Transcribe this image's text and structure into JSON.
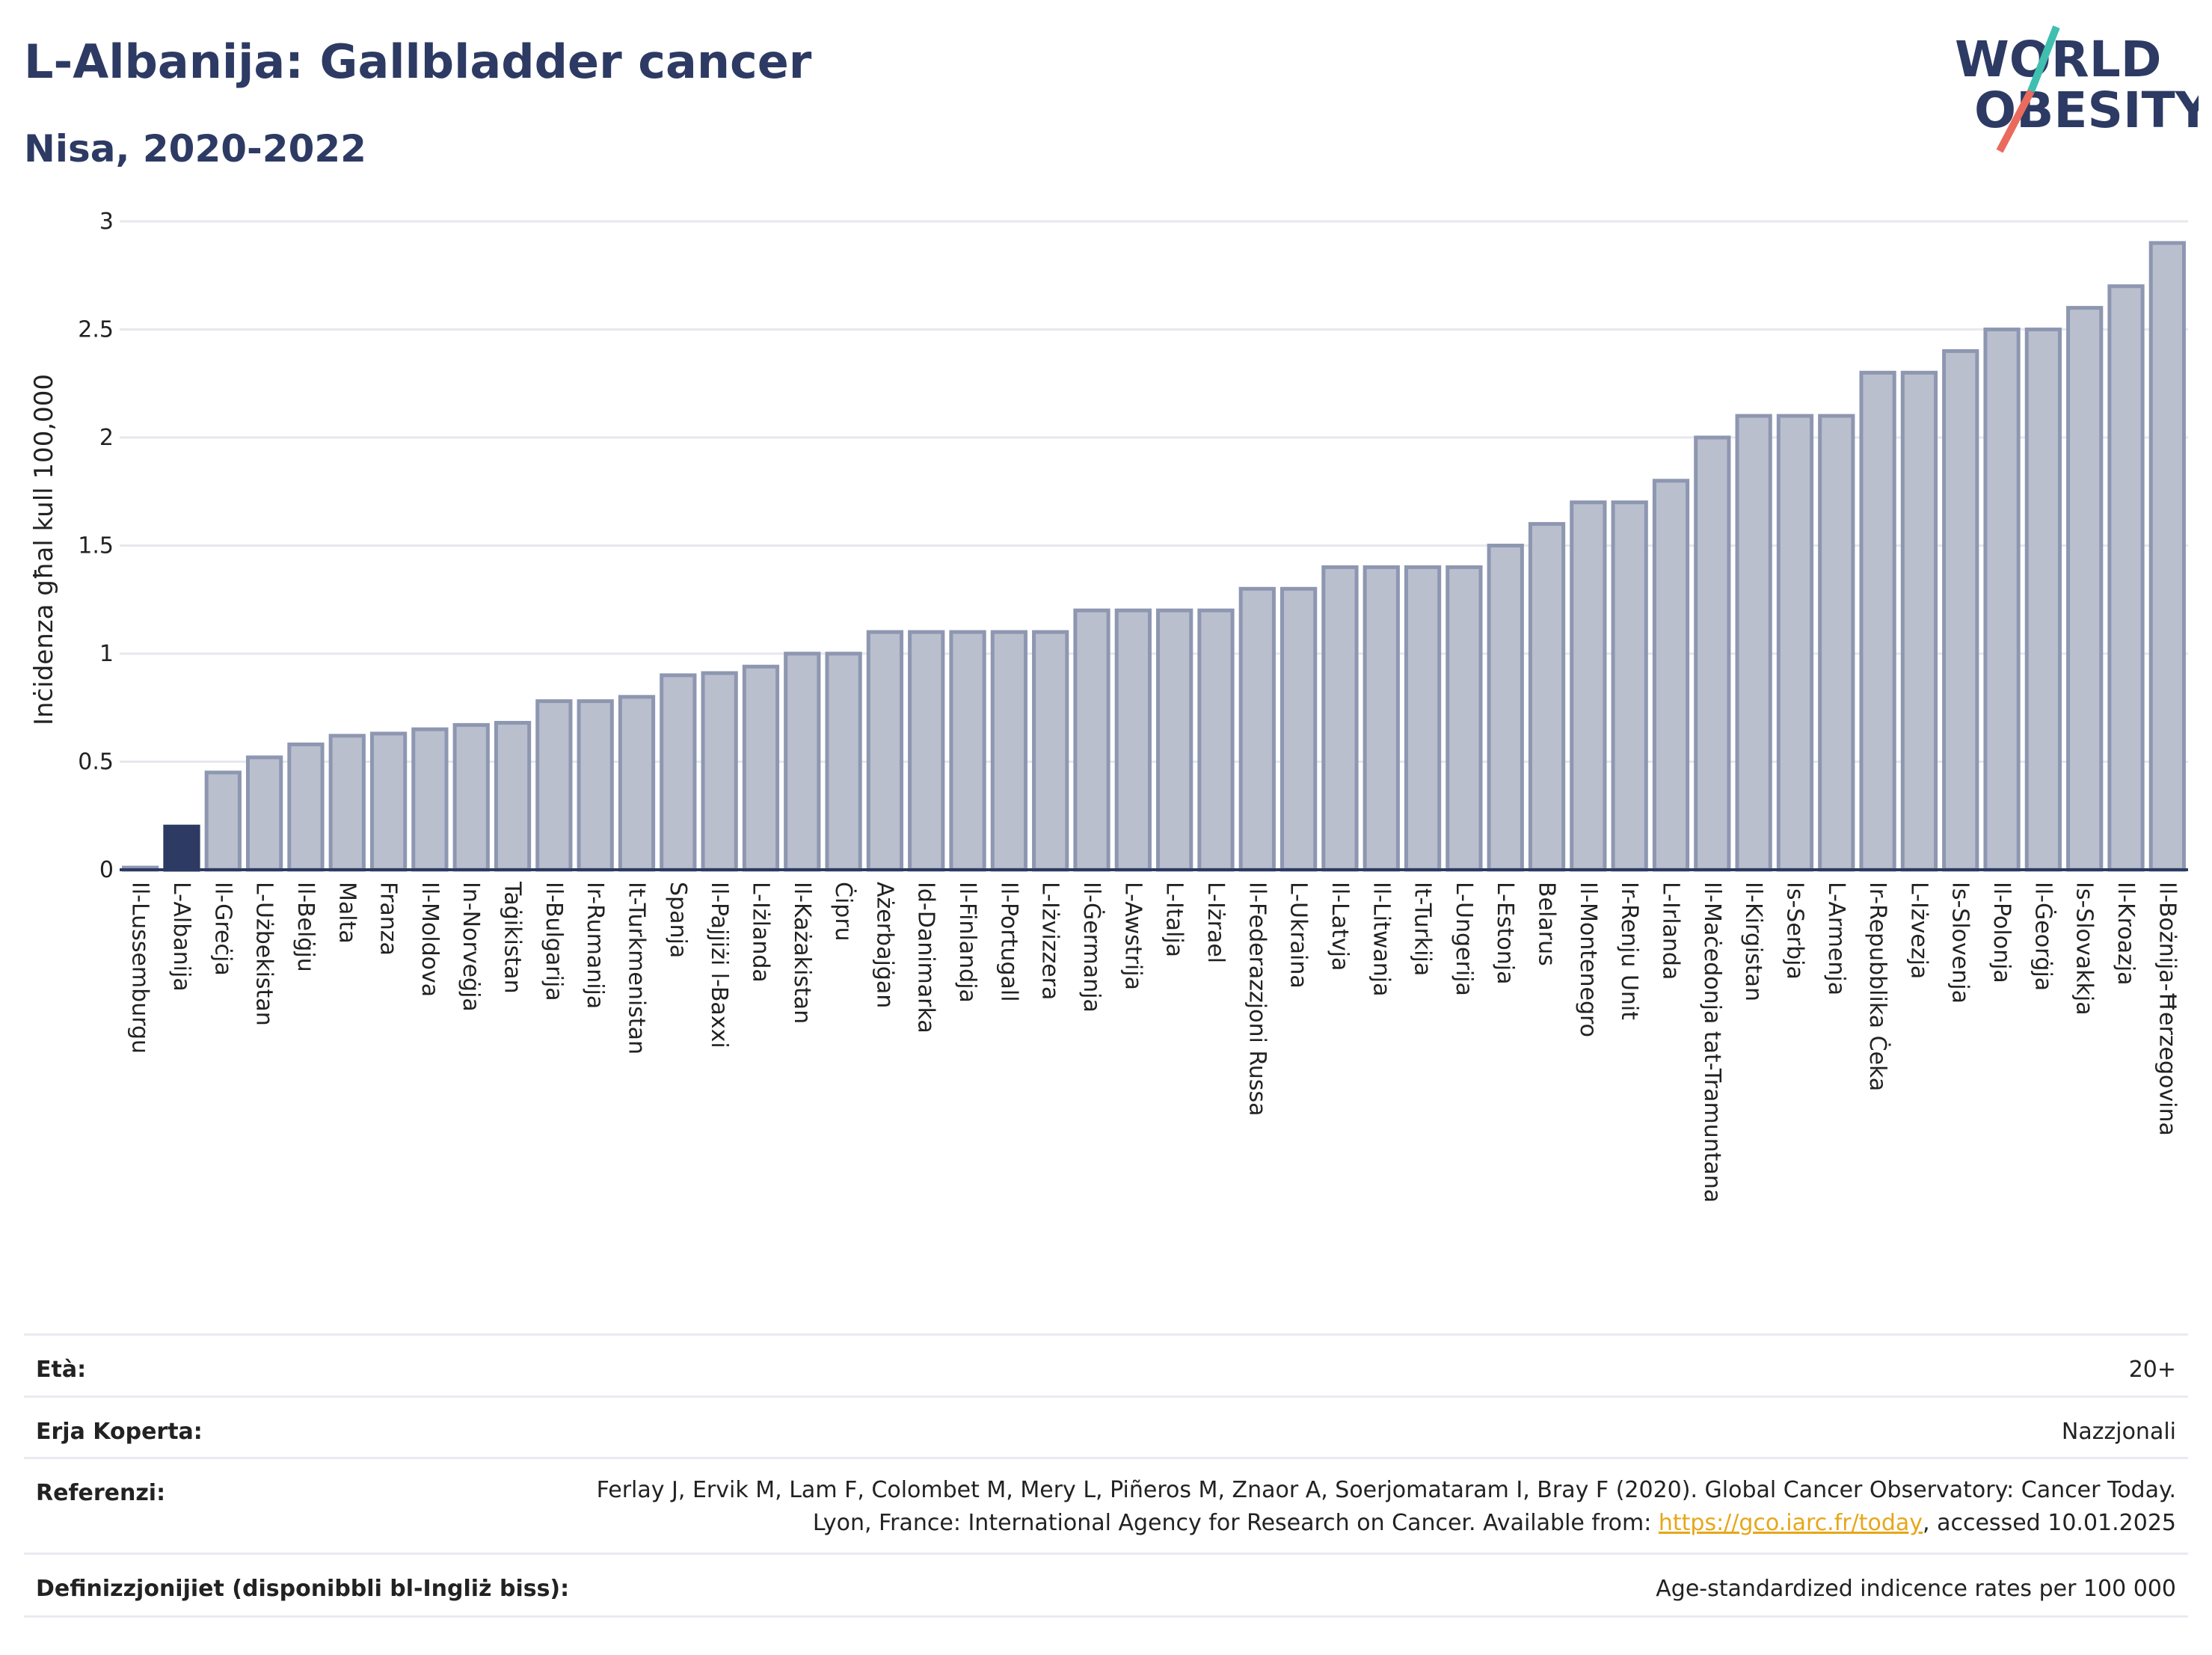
{
  "header": {
    "title": "L-Albanija: Gallbladder cancer",
    "subtitle": "Nisa, 2020-2022"
  },
  "logo": {
    "line1": "WORLD",
    "line2": "OBESITY"
  },
  "chart_data": {
    "type": "bar",
    "title": "L-Albanija: Gallbladder cancer",
    "subtitle": "Nisa, 2020-2022",
    "xlabel": "",
    "ylabel": "Inċidenza għal kull 100,000",
    "ylim": [
      0,
      3
    ],
    "yticks": [
      "0",
      "0.5",
      "1",
      "1.5",
      "2",
      "2.5",
      "3"
    ],
    "grid": true,
    "highlight_category": "L-Albanija",
    "colors": {
      "bar": "#b9bfcd",
      "bar_border": "#8e97b1",
      "highlight": "#2d3a63",
      "axis": "#2d3a63",
      "grid": "#e6e8ee"
    },
    "categories": [
      "Il-Lussemburgu",
      "L-Albanija",
      "Il-Greċja",
      "L-Użbekistan",
      "Il-Belġju",
      "Malta",
      "Franza",
      "Il-Moldova",
      "In-Norveġja",
      "Taġikistan",
      "Il-Bulgarija",
      "Ir-Rumanija",
      "It-Turkmenistan",
      "Spanja",
      "Il-Pajjiżi l-Baxxi",
      "L-Iżlanda",
      "Il-Każakistan",
      "Ċipru",
      "Ażerbajġan",
      "Id-Danimarka",
      "Il-Finlandja",
      "Il-Portugall",
      "L-Iżvizzera",
      "Il-Ġermanja",
      "L-Awstrija",
      "L-Italja",
      "L-Iżrael",
      "Il-Federazzjoni Russa",
      "L-Ukraina",
      "Il-Latvja",
      "Il-Litwanja",
      "It-Turkija",
      "L-Ungerija",
      "L-Estonja",
      "Belarus",
      "Il-Montenegro",
      "Ir-Renju Unit",
      "L-Irlanda",
      "Il-Maċedonja tat-Tramuntana",
      "Il-Kirgistan",
      "Is-Serbja",
      "L-Armenja",
      "Ir-Repubblika Ċeka",
      "L-Iżvezja",
      "Is-Slovenja",
      "Il-Polonja",
      "Il-Ġeorġja",
      "Is-Slovakkja",
      "Il-Kroazja",
      "Il-Bożnija-Ħerzegovina"
    ],
    "values": [
      0.01,
      0.2,
      0.45,
      0.52,
      0.58,
      0.62,
      0.63,
      0.65,
      0.67,
      0.68,
      0.78,
      0.78,
      0.8,
      0.9,
      0.91,
      0.94,
      1.0,
      1.0,
      1.1,
      1.1,
      1.1,
      1.1,
      1.1,
      1.2,
      1.2,
      1.2,
      1.2,
      1.3,
      1.3,
      1.4,
      1.4,
      1.4,
      1.4,
      1.5,
      1.6,
      1.7,
      1.7,
      1.8,
      2.0,
      2.1,
      2.1,
      2.1,
      2.3,
      2.3,
      2.4,
      2.5,
      2.5,
      2.6,
      2.7,
      2.9
    ]
  },
  "info": [
    {
      "label": "Età:",
      "value": "20+"
    },
    {
      "label": "Erja Koperta:",
      "value": "Nazzjonali"
    },
    {
      "label": "Referenzi:",
      "value_pre": "Ferlay J, Ervik M, Lam F, Colombet M, Mery L, Piñeros M, Znaor A, Soerjomataram I, Bray F (2020). Global Cancer Observatory: Cancer Today. Lyon, France: International Agency for Research on Cancer. Available from: ",
      "link": "https://gco.iarc.fr/today",
      "value_post": ", accessed 10.01.2025"
    },
    {
      "label": "Definizzjonijiet (disponibbli bl-Ingliż biss):",
      "value": "Age-standardized indicence rates per 100 000"
    }
  ]
}
